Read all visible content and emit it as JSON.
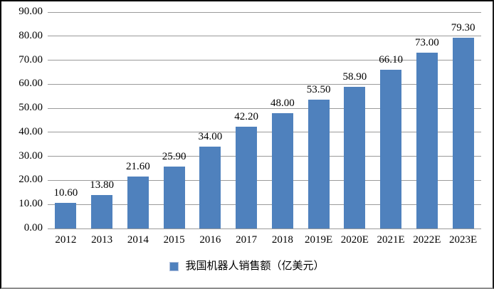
{
  "chart_data": {
    "type": "bar",
    "categories": [
      "2012",
      "2013",
      "2014",
      "2015",
      "2016",
      "2017",
      "2018",
      "2019E",
      "2020E",
      "2021E",
      "2022E",
      "2023E"
    ],
    "values": [
      10.6,
      13.8,
      21.6,
      25.9,
      34.0,
      42.2,
      48.0,
      53.5,
      58.9,
      66.1,
      73.0,
      79.3
    ],
    "data_labels": [
      "10.60",
      "13.80",
      "21.60",
      "25.90",
      "34.00",
      "42.20",
      "48.00",
      "53.50",
      "58.90",
      "66.10",
      "73.00",
      "79.30"
    ],
    "title": "",
    "xlabel": "",
    "ylabel": "",
    "ylim": [
      0,
      90
    ],
    "y_ticks": [
      "0.00",
      "10.00",
      "20.00",
      "30.00",
      "40.00",
      "50.00",
      "60.00",
      "70.00",
      "80.00",
      "90.00"
    ],
    "grid": true,
    "legend": "我国机器人销售额（亿美元）",
    "legend_position": "bottom",
    "bar_color": "#4F81BD",
    "gridline_color": "#9a9a9a"
  }
}
